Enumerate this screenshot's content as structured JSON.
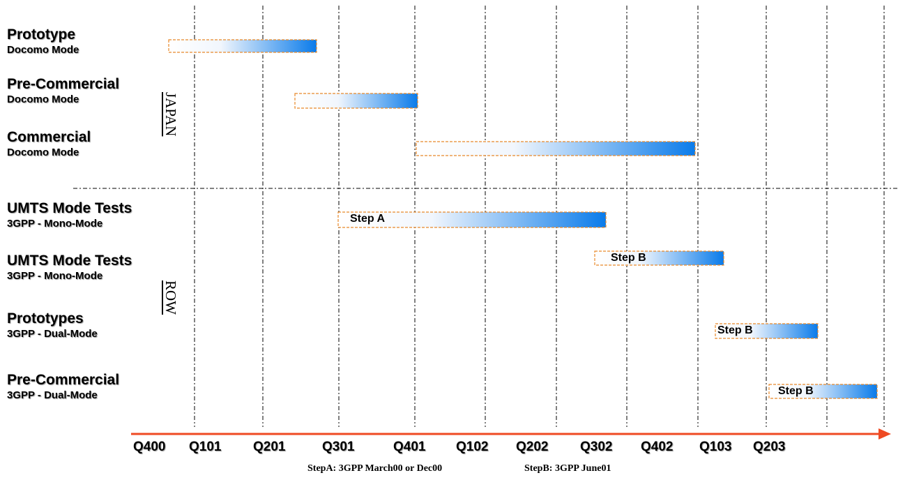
{
  "rows": [
    {
      "title": "Prototype",
      "subtitle": "Docomo Mode"
    },
    {
      "title": "Pre-Commercial",
      "subtitle": "Docomo Mode"
    },
    {
      "title": "Commercial",
      "subtitle": "Docomo Mode"
    },
    {
      "title": "UMTS Mode Tests",
      "subtitle": "3GPP - Mono-Mode"
    },
    {
      "title": "UMTS Mode Tests",
      "subtitle": "3GPP - Mono-Mode"
    },
    {
      "title": "Prototypes",
      "subtitle": "3GPP - Dual-Mode"
    },
    {
      "title": "Pre-Commercial",
      "subtitle": "3GPP - Dual-Mode"
    }
  ],
  "regions": {
    "japan": "JAPAN",
    "row": "ROW"
  },
  "bars": [
    {
      "label": ""
    },
    {
      "label": ""
    },
    {
      "label": ""
    },
    {
      "label": "Step A"
    },
    {
      "label": "Step B"
    },
    {
      "label": "Step B"
    },
    {
      "label": "Step B"
    }
  ],
  "axis": {
    "ticks": [
      "Q400",
      "Q101",
      "Q201",
      "Q301",
      "Q401",
      "Q102",
      "Q202",
      "Q302",
      "Q402",
      "Q103",
      "Q203"
    ]
  },
  "footnotes": {
    "step_a": "StepA: 3GPP March00 or Dec00",
    "step_b": "StepB: 3GPP June01"
  },
  "colors": {
    "bar_start": "#ffffff",
    "bar_end": "#0a7bea",
    "bar_border": "#e8892a",
    "arrow": "#ef4a23",
    "grid": "#000000"
  }
}
